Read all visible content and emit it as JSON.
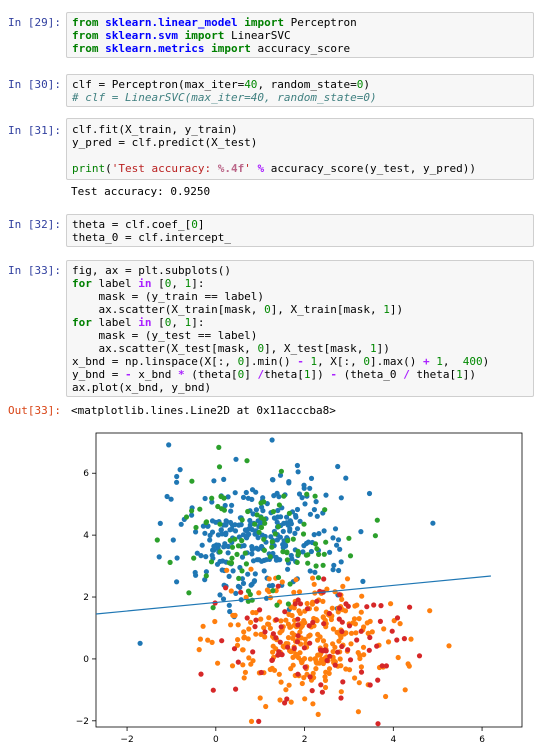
{
  "cells": [
    {
      "prompt": "In [29]:",
      "lines": [
        [
          [
            "from",
            "kw"
          ],
          [
            " ",
            ""
          ],
          [
            "sklearn.linear_model",
            "mod"
          ],
          [
            " ",
            ""
          ],
          [
            "import",
            "kw"
          ],
          [
            " Perceptron",
            ""
          ]
        ],
        [
          [
            "from",
            "kw"
          ],
          [
            " ",
            ""
          ],
          [
            "sklearn.svm",
            "mod"
          ],
          [
            " ",
            ""
          ],
          [
            "import",
            "kw"
          ],
          [
            " LinearSVC",
            ""
          ]
        ],
        [
          [
            "from",
            "kw"
          ],
          [
            " ",
            ""
          ],
          [
            "sklearn.metrics",
            "mod"
          ],
          [
            " ",
            ""
          ],
          [
            "import",
            "kw"
          ],
          [
            " accuracy_score",
            ""
          ]
        ]
      ]
    },
    {
      "prompt": "In [30]:",
      "lines": [
        [
          [
            "clf = Perceptron(max_iter=",
            ""
          ],
          [
            "40",
            "num"
          ],
          [
            ", random_state=",
            ""
          ],
          [
            "0",
            "num"
          ],
          [
            ")",
            ""
          ]
        ],
        [
          [
            "# clf = LinearSVC(max_iter=40, random_state=0)",
            "cmt"
          ]
        ]
      ]
    },
    {
      "prompt": "In [31]:",
      "lines": [
        [
          [
            "clf.fit(X_train, y_train)",
            ""
          ]
        ],
        [
          [
            "y_pred = clf.predict(X_test)",
            ""
          ]
        ],
        [
          [
            "",
            ""
          ]
        ],
        [
          [
            "print",
            "kw2"
          ],
          [
            "(",
            ""
          ],
          [
            "'Test accuracy: ",
            "str"
          ],
          [
            "%.4f",
            "fmt"
          ],
          [
            "'",
            "str"
          ],
          [
            " ",
            ""
          ],
          [
            "%",
            "op"
          ],
          [
            " accuracy_score(y_test, y_pred))",
            ""
          ]
        ]
      ]
    },
    {
      "prompt": "In [32]:",
      "lines": [
        [
          [
            "theta = clf.coef_[",
            ""
          ],
          [
            "0",
            "num"
          ],
          [
            "]",
            ""
          ]
        ],
        [
          [
            "theta_0 = clf.intercept_",
            ""
          ]
        ]
      ]
    },
    {
      "prompt": "In [33]:",
      "lines": [
        [
          [
            "fig, ax = plt.subplots()",
            ""
          ]
        ],
        [
          [
            "for",
            "kw"
          ],
          [
            " label ",
            ""
          ],
          [
            "in",
            "op"
          ],
          [
            " [",
            ""
          ],
          [
            "0",
            "num"
          ],
          [
            ", ",
            ""
          ],
          [
            "1",
            "num"
          ],
          [
            "]:",
            ""
          ]
        ],
        [
          [
            "    mask = (y_train == label)",
            ""
          ]
        ],
        [
          [
            "    ax.scatter(X_train[mask, ",
            ""
          ],
          [
            "0",
            "num"
          ],
          [
            "], X_train[mask, ",
            ""
          ],
          [
            "1",
            "num"
          ],
          [
            "])",
            ""
          ]
        ],
        [
          [
            "for",
            "kw"
          ],
          [
            " label ",
            ""
          ],
          [
            "in",
            "op"
          ],
          [
            " [",
            ""
          ],
          [
            "0",
            "num"
          ],
          [
            ", ",
            ""
          ],
          [
            "1",
            "num"
          ],
          [
            "]:",
            ""
          ]
        ],
        [
          [
            "    mask = (y_test == label)",
            ""
          ]
        ],
        [
          [
            "    ax.scatter(X_test[mask, ",
            ""
          ],
          [
            "0",
            "num"
          ],
          [
            "], X_test[mask, ",
            ""
          ],
          [
            "1",
            "num"
          ],
          [
            "])",
            ""
          ]
        ],
        [
          [
            "x_bnd = np.linspace(X[:, ",
            ""
          ],
          [
            "0",
            "num"
          ],
          [
            "].min() ",
            ""
          ],
          [
            "-",
            "op"
          ],
          [
            " ",
            ""
          ],
          [
            "1",
            "num"
          ],
          [
            ", X[:, ",
            ""
          ],
          [
            "0",
            "num"
          ],
          [
            "].max() ",
            ""
          ],
          [
            "+",
            "op"
          ],
          [
            " ",
            ""
          ],
          [
            "1",
            "num"
          ],
          [
            ",  ",
            ""
          ],
          [
            "400",
            "num"
          ],
          [
            ")",
            ""
          ]
        ],
        [
          [
            "y_bnd = ",
            ""
          ],
          [
            "-",
            "op"
          ],
          [
            " x_bnd ",
            ""
          ],
          [
            "*",
            "op"
          ],
          [
            " (theta[",
            ""
          ],
          [
            "0",
            "num"
          ],
          [
            "] ",
            ""
          ],
          [
            "/",
            "op"
          ],
          [
            "theta[",
            ""
          ],
          [
            "1",
            "num"
          ],
          [
            "]) ",
            ""
          ],
          [
            "-",
            "op"
          ],
          [
            " (theta_0 ",
            ""
          ],
          [
            "/",
            "op"
          ],
          [
            " theta[",
            ""
          ],
          [
            "1",
            "num"
          ],
          [
            "])",
            ""
          ]
        ],
        [
          [
            "ax.plot(x_bnd, y_bnd)",
            ""
          ]
        ]
      ]
    }
  ],
  "outputs": {
    "accuracy_text": "Test accuracy: 0.9250",
    "out_prompt": "Out[33]:",
    "out_text": "<matplotlib.lines.Line2D at 0x11acccba8>"
  },
  "colors": {
    "train_0": "#1f77b4",
    "train_1": "#ff7f0e",
    "test_0": "#2ca02c",
    "test_1": "#d62728",
    "line": "#1f77b4"
  },
  "chart_data": {
    "type": "scatter",
    "xlim": [
      -2.7,
      6.9
    ],
    "ylim": [
      -2.2,
      7.3
    ],
    "xticks": [
      "-2",
      "0",
      "2",
      "4",
      "6"
    ],
    "yticks": [
      "-2",
      "0",
      "2",
      "4",
      "6"
    ],
    "series_description": [
      {
        "class": "train label 0",
        "center": [
          1.0,
          4.0
        ],
        "count": 300
      },
      {
        "class": "train label 1",
        "center": [
          2.1,
          0.6
        ],
        "count": 300
      },
      {
        "class": "test label 0",
        "center": [
          1.0,
          4.0
        ],
        "count": 100
      },
      {
        "class": "test label 1",
        "center": [
          2.1,
          0.6
        ],
        "count": 100
      }
    ],
    "boundary_line": {
      "x": [
        -2.7,
        6.2
      ],
      "y": [
        1.45,
        2.68
      ]
    }
  }
}
